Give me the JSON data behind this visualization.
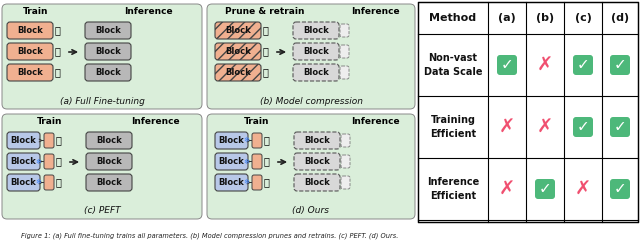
{
  "fig_width": 6.4,
  "fig_height": 2.42,
  "dpi": 100,
  "bg_color": "#ffffff",
  "green_bg": "#daeeda",
  "block_pink": "#f0b090",
  "block_blue": "#b8c8e8",
  "block_gray": "#b8b8b8",
  "table_check_color": "#4db87a",
  "table_cross_color": "#f05070",
  "table_header_row": [
    "Method",
    "(a)",
    "(b)",
    "(c)",
    "(d)"
  ],
  "table_row_labels": [
    "Non-vast\nData Scale",
    "Training\nEfficient",
    "Inference\nEfficient"
  ],
  "table_data": [
    [
      true,
      false,
      true,
      true
    ],
    [
      false,
      false,
      true,
      true
    ],
    [
      false,
      true,
      false,
      true
    ]
  ]
}
